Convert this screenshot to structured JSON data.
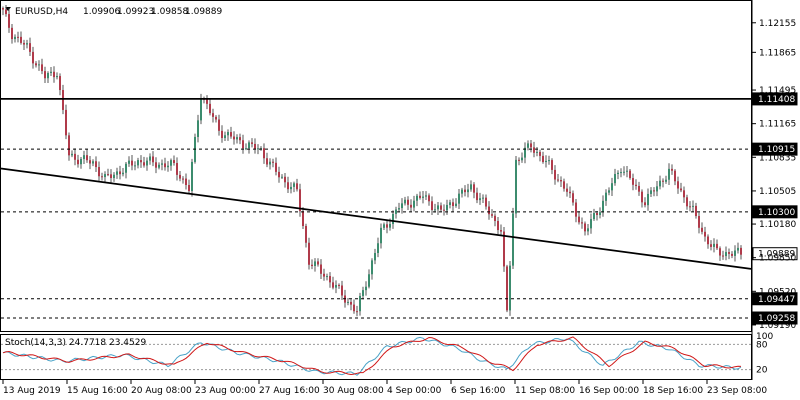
{
  "header": {
    "symbol": "EURUSD,H4",
    "open": "1.09906",
    "high": "1.09923",
    "low": "1.09858",
    "close": "1.09889"
  },
  "price_axis": {
    "ticks": [
      "1.12155",
      "1.11865",
      "1.11495",
      "1.11165",
      "1.10835",
      "1.10505",
      "1.10180",
      "1.09850",
      "1.09520",
      "1.09190"
    ]
  },
  "levels": [
    {
      "label": "1.11408",
      "style": "solid",
      "price": 1.11408
    },
    {
      "label": "1.10915",
      "style": "dashed",
      "price": 1.10915
    },
    {
      "label": "1.10300",
      "style": "dashed",
      "price": 1.103
    },
    {
      "label": "1.09889",
      "style": "current",
      "price": 1.09889
    },
    {
      "label": "1.09447",
      "style": "dashed",
      "price": 1.09447
    },
    {
      "label": "1.09258",
      "style": "dashed",
      "price": 1.09258
    }
  ],
  "trendline": {
    "start_price": 1.10725,
    "end_price": 1.0974
  },
  "stoch": {
    "label": "Stoch(14,3,3) 24.7718 23.4529",
    "levels": [
      "80",
      "20"
    ],
    "top_label": "100"
  },
  "time_axis": {
    "labels": [
      "13 Aug 2019",
      "15 Aug 16:00",
      "20 Aug 08:00",
      "23 Aug 00:00",
      "27 Aug 16:00",
      "30 Aug 08:00",
      "4 Sep 00:00",
      "6 Sep 16:00",
      "11 Sep 08:00",
      "16 Sep 00:00",
      "18 Sep 16:00",
      "23 Sep 08:00"
    ]
  },
  "colors": {
    "bull": "#3c8c6e",
    "bear": "#b03a4a",
    "wick": "#555555",
    "stoch_main": "#4aa3c8",
    "stoch_signal": "#d01818"
  },
  "chart_data": {
    "type": "candlestick",
    "title": "",
    "keyframes_close": [
      [
        0,
        1.1226
      ],
      [
        3,
        1.1205
      ],
      [
        8,
        1.1191
      ],
      [
        14,
        1.1162
      ],
      [
        18,
        1.1168
      ],
      [
        22,
        1.1085
      ],
      [
        30,
        1.1078
      ],
      [
        34,
        1.1062
      ],
      [
        45,
        1.108
      ],
      [
        57,
        1.1075
      ],
      [
        62,
        1.1052
      ],
      [
        66,
        1.1146
      ],
      [
        72,
        1.111
      ],
      [
        78,
        1.11
      ],
      [
        86,
        1.109
      ],
      [
        92,
        1.1065
      ],
      [
        98,
        1.105
      ],
      [
        102,
        1.0982
      ],
      [
        108,
        1.0966
      ],
      [
        114,
        1.0945
      ],
      [
        118,
        1.0932
      ],
      [
        126,
        1.101
      ],
      [
        132,
        1.1035
      ],
      [
        140,
        1.1045
      ],
      [
        146,
        1.103
      ],
      [
        156,
        1.1055
      ],
      [
        162,
        1.103
      ],
      [
        166,
        1.1012
      ],
      [
        168,
        1.093
      ],
      [
        171,
        1.108
      ],
      [
        176,
        1.1095
      ],
      [
        182,
        1.1075
      ],
      [
        188,
        1.105
      ],
      [
        194,
        1.101
      ],
      [
        200,
        1.104
      ],
      [
        206,
        1.1075
      ],
      [
        214,
        1.104
      ],
      [
        222,
        1.107
      ],
      [
        230,
        1.103
      ],
      [
        234,
        1.1005
      ],
      [
        238,
        1.099
      ],
      [
        246,
        1.0989
      ]
    ],
    "stoch_keyframes": [
      [
        0,
        60
      ],
      [
        20,
        40
      ],
      [
        40,
        55
      ],
      [
        55,
        30
      ],
      [
        66,
        85
      ],
      [
        78,
        60
      ],
      [
        92,
        40
      ],
      [
        104,
        15
      ],
      [
        118,
        10
      ],
      [
        128,
        75
      ],
      [
        140,
        95
      ],
      [
        152,
        70
      ],
      [
        160,
        40
      ],
      [
        168,
        20
      ],
      [
        176,
        80
      ],
      [
        188,
        95
      ],
      [
        200,
        30
      ],
      [
        212,
        85
      ],
      [
        222,
        70
      ],
      [
        232,
        30
      ],
      [
        246,
        24
      ]
    ]
  }
}
